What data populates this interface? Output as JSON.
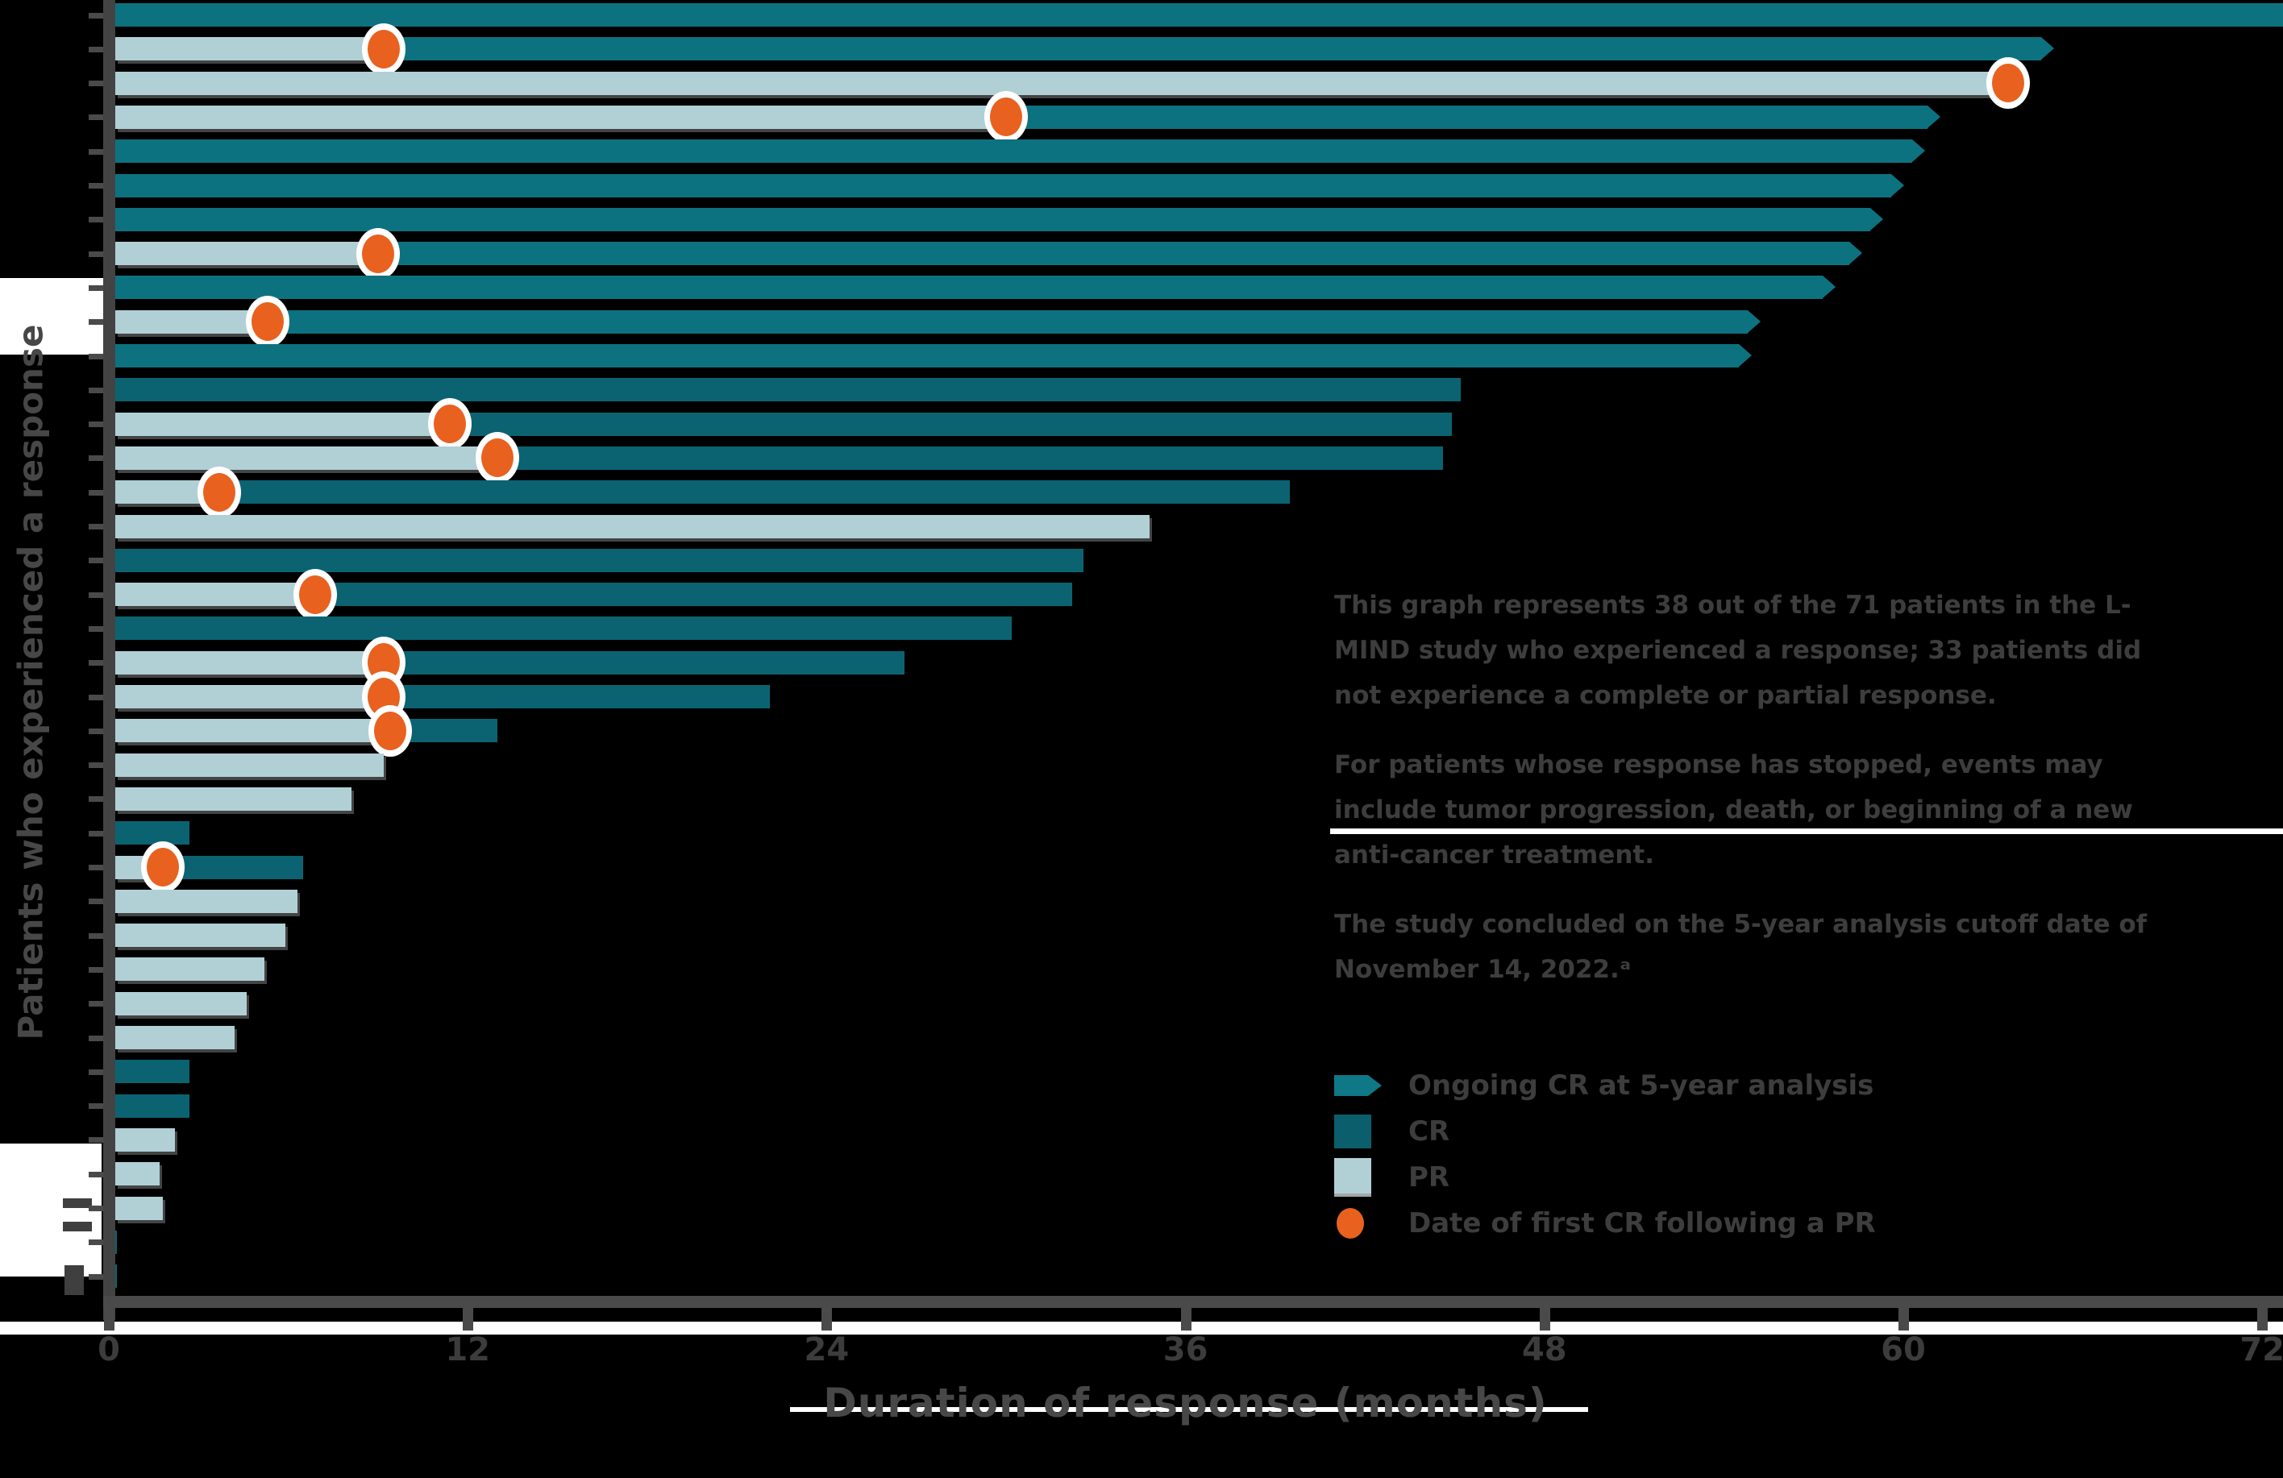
{
  "axes": {
    "x_title": "Duration of response (months)",
    "y_title": "Patients who experienced a response",
    "x_ticks": [
      0,
      12,
      24,
      36,
      48,
      60,
      72
    ],
    "x_max": 72
  },
  "text_panel": {
    "para1": "This graph represents 38 out of the 71 patients in the L-MIND study who experienced a response; 33 patients did not experience a complete or partial response.",
    "para2": "For patients whose response has stopped, events may include tumor progression, death, or beginning of a new anti-cancer treatment.",
    "para3": "The study concluded on the 5-year analysis cutoff date of November 14, 2022.ᵃ"
  },
  "legend": {
    "items": [
      {
        "marker": "ongoing-arrow-swatch",
        "label": "Ongoing CR at 5-year analysis"
      },
      {
        "marker": "cr-swatch",
        "label": "CR"
      },
      {
        "marker": "pr-swatch",
        "label": "PR"
      },
      {
        "marker": "first-cr-dot",
        "label": "Date of first CR following a PR"
      }
    ]
  },
  "colors": {
    "cr": "#0b6372",
    "cr_ongoing": "#0d7280",
    "pr": "#b1d0d6",
    "dot_orange": "#e8611f",
    "dot_ring": "#ffffff",
    "axis_gray": "#4a4a4a",
    "text_gray": "#3d3d3d"
  },
  "chart_data": {
    "type": "bar",
    "subtype": "swimmer-plot",
    "unit": "months",
    "title": "",
    "xlabel": "Duration of response (months)",
    "ylabel": "Patients who experienced a response",
    "xlim": [
      0,
      72
    ],
    "grid": false,
    "legend_position": "right",
    "bars": [
      {
        "id": 1,
        "segments": [
          {
            "response": "CR",
            "start": 0,
            "end": 73.2
          }
        ],
        "ongoing": true
      },
      {
        "id": 2,
        "segments": [
          {
            "response": "PR",
            "start": 0,
            "end": 9.2
          },
          {
            "response": "CR",
            "start": 9.2,
            "end": 64.6
          }
        ],
        "cr_dot_month": 9.2,
        "ongoing": true
      },
      {
        "id": 3,
        "segments": [
          {
            "response": "PR",
            "start": 0,
            "end": 63.5
          }
        ],
        "cr_dot_month": 63.5,
        "ongoing": false
      },
      {
        "id": 4,
        "segments": [
          {
            "response": "PR",
            "start": 0,
            "end": 30.0
          },
          {
            "response": "CR",
            "start": 30.0,
            "end": 60.8
          }
        ],
        "cr_dot_month": 30.0,
        "ongoing": true
      },
      {
        "id": 5,
        "segments": [
          {
            "response": "CR",
            "start": 0,
            "end": 60.3
          }
        ],
        "ongoing": true
      },
      {
        "id": 6,
        "segments": [
          {
            "response": "CR",
            "start": 0,
            "end": 59.6
          }
        ],
        "ongoing": true
      },
      {
        "id": 7,
        "segments": [
          {
            "response": "CR",
            "start": 0,
            "end": 58.9
          }
        ],
        "ongoing": true
      },
      {
        "id": 8,
        "segments": [
          {
            "response": "PR",
            "start": 0,
            "end": 9.0
          },
          {
            "response": "CR",
            "start": 9.0,
            "end": 58.2
          }
        ],
        "cr_dot_month": 9.0,
        "ongoing": true
      },
      {
        "id": 9,
        "segments": [
          {
            "response": "CR",
            "start": 0,
            "end": 57.3
          }
        ],
        "ongoing": true
      },
      {
        "id": 10,
        "segments": [
          {
            "response": "PR",
            "start": 0,
            "end": 5.3
          },
          {
            "response": "CR",
            "start": 5.3,
            "end": 54.8
          }
        ],
        "cr_dot_month": 5.3,
        "ongoing": true
      },
      {
        "id": 11,
        "segments": [
          {
            "response": "CR",
            "start": 0,
            "end": 54.5
          }
        ],
        "ongoing": true
      },
      {
        "id": 12,
        "segments": [
          {
            "response": "CR",
            "start": 0,
            "end": 45.2
          }
        ],
        "ongoing": false
      },
      {
        "id": 13,
        "segments": [
          {
            "response": "PR",
            "start": 0,
            "end": 11.4
          },
          {
            "response": "CR",
            "start": 11.4,
            "end": 44.9
          }
        ],
        "cr_dot_month": 11.4,
        "ongoing": false
      },
      {
        "id": 14,
        "segments": [
          {
            "response": "PR",
            "start": 0,
            "end": 13.0
          },
          {
            "response": "CR",
            "start": 13.0,
            "end": 44.6
          }
        ],
        "cr_dot_month": 13.0,
        "ongoing": false
      },
      {
        "id": 15,
        "segments": [
          {
            "response": "PR",
            "start": 0,
            "end": 3.7
          },
          {
            "response": "CR",
            "start": 3.7,
            "end": 39.5
          }
        ],
        "cr_dot_month": 3.7,
        "ongoing": false
      },
      {
        "id": 16,
        "segments": [
          {
            "response": "PR",
            "start": 0,
            "end": 34.8
          }
        ],
        "ongoing": false
      },
      {
        "id": 17,
        "segments": [
          {
            "response": "CR",
            "start": 0,
            "end": 32.6
          }
        ],
        "ongoing": false
      },
      {
        "id": 18,
        "segments": [
          {
            "response": "PR",
            "start": 0,
            "end": 6.9
          },
          {
            "response": "CR",
            "start": 6.9,
            "end": 32.2
          }
        ],
        "cr_dot_month": 6.9,
        "ongoing": false
      },
      {
        "id": 19,
        "segments": [
          {
            "response": "CR",
            "start": 0,
            "end": 30.2
          }
        ],
        "ongoing": false
      },
      {
        "id": 20,
        "segments": [
          {
            "response": "PR",
            "start": 0,
            "end": 9.2
          },
          {
            "response": "CR",
            "start": 9.2,
            "end": 26.6
          }
        ],
        "cr_dot_month": 9.2,
        "ongoing": false
      },
      {
        "id": 21,
        "segments": [
          {
            "response": "PR",
            "start": 0,
            "end": 9.2
          },
          {
            "response": "CR",
            "start": 9.2,
            "end": 22.1
          }
        ],
        "cr_dot_month": 9.2,
        "ongoing": false
      },
      {
        "id": 22,
        "segments": [
          {
            "response": "PR",
            "start": 0,
            "end": 9.4
          },
          {
            "response": "CR",
            "start": 9.4,
            "end": 13.0
          }
        ],
        "cr_dot_month": 9.4,
        "ongoing": false
      },
      {
        "id": 23,
        "segments": [
          {
            "response": "PR",
            "start": 0,
            "end": 9.2
          }
        ],
        "ongoing": false
      },
      {
        "id": 24,
        "segments": [
          {
            "response": "PR",
            "start": 0,
            "end": 8.1
          }
        ],
        "ongoing": false
      },
      {
        "id": 25,
        "segments": [
          {
            "response": "CR",
            "start": 0,
            "end": 2.7
          }
        ],
        "ongoing": false
      },
      {
        "id": 26,
        "segments": [
          {
            "response": "PR",
            "start": 0,
            "end": 1.8
          },
          {
            "response": "CR",
            "start": 1.8,
            "end": 6.5
          }
        ],
        "cr_dot_month": 1.8,
        "ongoing": false
      },
      {
        "id": 27,
        "segments": [
          {
            "response": "PR",
            "start": 0,
            "end": 6.3
          }
        ],
        "ongoing": false
      },
      {
        "id": 28,
        "segments": [
          {
            "response": "PR",
            "start": 0,
            "end": 5.9
          }
        ],
        "ongoing": false
      },
      {
        "id": 29,
        "segments": [
          {
            "response": "PR",
            "start": 0,
            "end": 5.2
          }
        ],
        "ongoing": false
      },
      {
        "id": 30,
        "segments": [
          {
            "response": "PR",
            "start": 0,
            "end": 4.6
          }
        ],
        "ongoing": false
      },
      {
        "id": 31,
        "segments": [
          {
            "response": "PR",
            "start": 0,
            "end": 4.2
          }
        ],
        "ongoing": false
      },
      {
        "id": 32,
        "segments": [
          {
            "response": "CR",
            "start": 0,
            "end": 2.7
          }
        ],
        "ongoing": false
      },
      {
        "id": 33,
        "segments": [
          {
            "response": "CR",
            "start": 0,
            "end": 2.7
          }
        ],
        "ongoing": false
      },
      {
        "id": 34,
        "segments": [
          {
            "response": "PR",
            "start": 0,
            "end": 2.2
          }
        ],
        "ongoing": false
      },
      {
        "id": 35,
        "segments": [
          {
            "response": "PR",
            "start": 0,
            "end": 1.7
          }
        ],
        "ongoing": false
      },
      {
        "id": 36,
        "segments": [
          {
            "response": "PR",
            "start": 0,
            "end": 1.8
          }
        ],
        "ongoing": false
      },
      {
        "id": 37,
        "segments": [
          {
            "response": "CR",
            "start": 0,
            "end": 0.2
          }
        ],
        "ongoing": false
      },
      {
        "id": 38,
        "segments": [
          {
            "response": "CR",
            "start": 0,
            "end": 0.2
          }
        ],
        "ongoing": false
      }
    ]
  }
}
